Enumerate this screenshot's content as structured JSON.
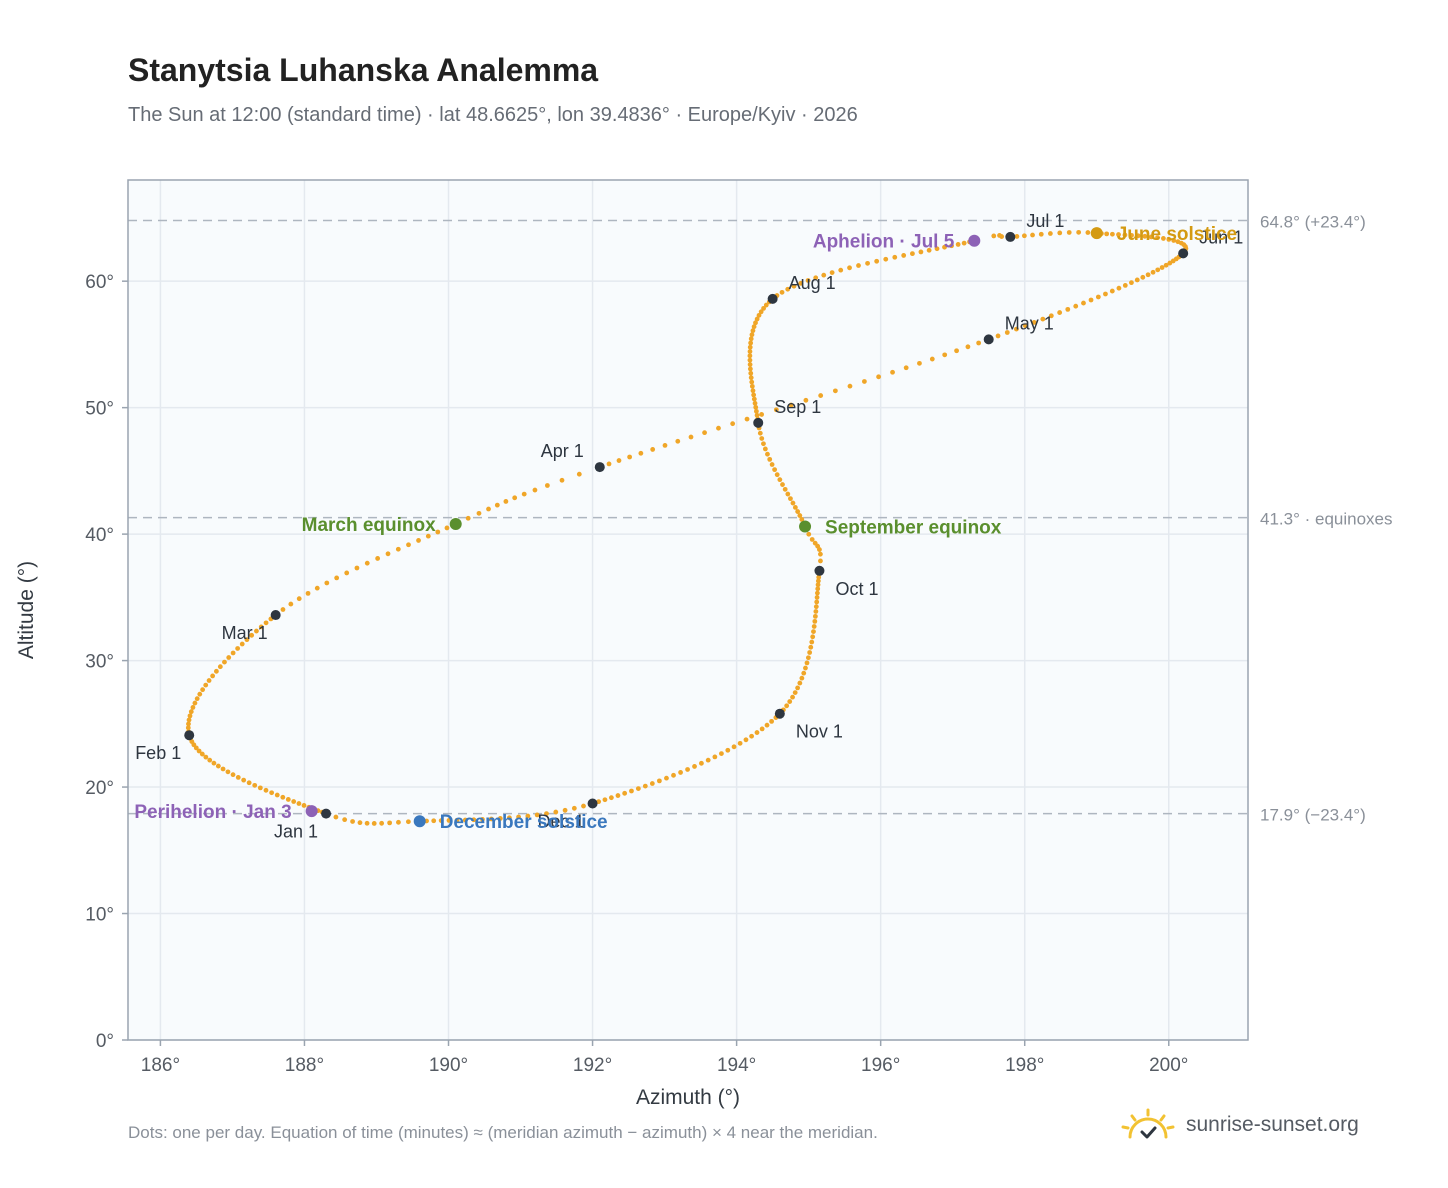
{
  "title": "Stanytsia Luhanska Analemma",
  "subtitle": "The Sun at 12:00 (standard time) · lat 48.6625°, lon 39.4836° · Europe/Kyiv · 2026",
  "footnote": "Dots: one per day. Equation of time (minutes) ≈ (meridian azimuth − azimuth) × 4 near the meridian.",
  "brand": {
    "text": "sunrise-sunset.org",
    "icon": "sun-logo-icon"
  },
  "colors": {
    "path": "#f0a628",
    "month": "#2e3640",
    "equinox": "#5a8f2e",
    "june_solstice": "#d49a12",
    "december_solstice": "#3a78be",
    "apsis": "#8d62b6",
    "refline": "#aeb6c0",
    "plot_bg": "#f8fbfd",
    "grid": "#e4e9ef"
  },
  "chart_data": {
    "type": "scatter",
    "xlabel": "Azimuth (°)",
    "ylabel": "Altitude (°)",
    "xlim": [
      185.55,
      201.1
    ],
    "ylim": [
      0,
      68
    ],
    "xticks": [
      186,
      188,
      190,
      192,
      194,
      196,
      198,
      200
    ],
    "yticks": [
      0,
      10,
      20,
      30,
      40,
      50,
      60
    ],
    "grid": true,
    "path_anchors": [
      {
        "day": 0,
        "az": 188.3,
        "alt": 17.9
      },
      {
        "day": 31,
        "az": 186.4,
        "alt": 24.1
      },
      {
        "day": 59,
        "az": 187.6,
        "alt": 33.6
      },
      {
        "day": 78,
        "az": 190.1,
        "alt": 40.8
      },
      {
        "day": 90,
        "az": 192.1,
        "alt": 45.3
      },
      {
        "day": 120,
        "az": 197.5,
        "alt": 55.4
      },
      {
        "day": 151,
        "az": 200.2,
        "alt": 62.2
      },
      {
        "day": 171,
        "az": 199.0,
        "alt": 63.8
      },
      {
        "day": 181,
        "az": 197.8,
        "alt": 63.5
      },
      {
        "day": 185,
        "az": 197.3,
        "alt": 63.2
      },
      {
        "day": 212,
        "az": 194.5,
        "alt": 58.6
      },
      {
        "day": 243,
        "az": 194.3,
        "alt": 48.8
      },
      {
        "day": 265,
        "az": 194.95,
        "alt": 40.6
      },
      {
        "day": 273,
        "az": 195.15,
        "alt": 37.1
      },
      {
        "day": 304,
        "az": 194.6,
        "alt": 25.8
      },
      {
        "day": 334,
        "az": 192.0,
        "alt": 18.7
      },
      {
        "day": 354,
        "az": 189.6,
        "alt": 17.3
      },
      {
        "day": 365,
        "az": 188.3,
        "alt": 17.9
      }
    ],
    "month_markers": [
      {
        "label": "Jan 1",
        "az": 188.3,
        "alt": 17.9,
        "pos": "below-left"
      },
      {
        "label": "Feb 1",
        "az": 186.4,
        "alt": 24.1,
        "pos": "below-left"
      },
      {
        "label": "Mar 1",
        "az": 187.6,
        "alt": 33.6,
        "pos": "below-left"
      },
      {
        "label": "Apr 1",
        "az": 192.1,
        "alt": 45.3,
        "pos": "above-left"
      },
      {
        "label": "May 1",
        "az": 197.5,
        "alt": 55.4,
        "pos": "above-right"
      },
      {
        "label": "Jun 1",
        "az": 200.2,
        "alt": 62.2,
        "pos": "above-right"
      },
      {
        "label": "Jul 1",
        "az": 197.8,
        "alt": 63.5,
        "pos": "above-right"
      },
      {
        "label": "Aug 1",
        "az": 194.5,
        "alt": 58.6,
        "pos": "above-right"
      },
      {
        "label": "Sep 1",
        "az": 194.3,
        "alt": 48.8,
        "pos": "above-right"
      },
      {
        "label": "Oct 1",
        "az": 195.15,
        "alt": 37.1,
        "pos": "below-right"
      },
      {
        "label": "Nov 1",
        "az": 194.6,
        "alt": 25.8,
        "pos": "below-right"
      },
      {
        "label": "Dec 1",
        "az": 192.0,
        "alt": 18.7,
        "pos": "below-left"
      }
    ],
    "events": [
      {
        "label": "March equinox",
        "az": 190.1,
        "alt": 40.8,
        "color": "#5a8f2e",
        "pos": "left"
      },
      {
        "label": "September equinox",
        "az": 194.95,
        "alt": 40.6,
        "color": "#5a8f2e",
        "pos": "right"
      },
      {
        "label": "June solstice",
        "az": 199.0,
        "alt": 63.8,
        "color": "#d49a12",
        "pos": "right"
      },
      {
        "label": "December solstice",
        "az": 189.6,
        "alt": 17.3,
        "color": "#3a78be",
        "pos": "right"
      },
      {
        "label": "Aphelion · Jul 5",
        "az": 197.3,
        "alt": 63.2,
        "color": "#8d62b6",
        "pos": "left"
      },
      {
        "label": "Perihelion · Jan 3",
        "az": 188.1,
        "alt": 18.1,
        "color": "#8d62b6",
        "pos": "left"
      }
    ],
    "reference_lines": [
      {
        "alt": 64.8,
        "label": "64.8° (+23.4°)"
      },
      {
        "alt": 41.3,
        "label": "41.3° · equinoxes"
      },
      {
        "alt": 17.9,
        "label": "17.9° (−23.4°)"
      }
    ]
  }
}
